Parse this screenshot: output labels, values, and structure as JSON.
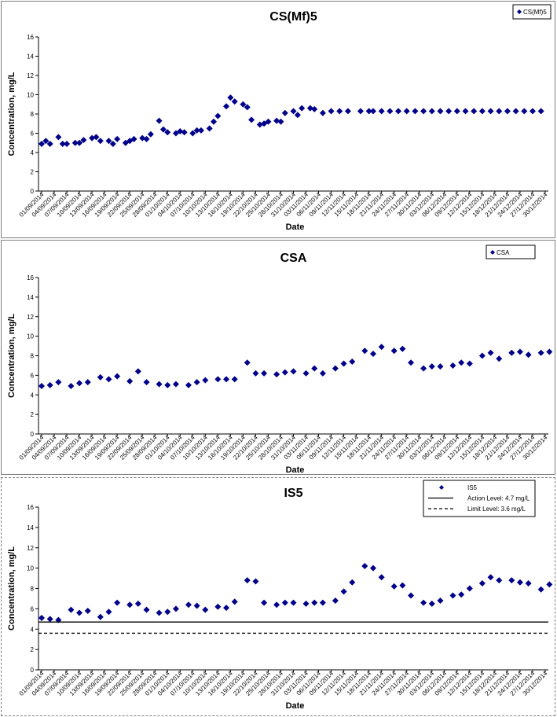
{
  "chart_data": [
    {
      "type": "scatter",
      "title": "CS(Mf)5",
      "xlabel": "Date",
      "ylabel": "Concentration, mg/L",
      "ylim": [
        0,
        16
      ],
      "yticks": [
        0,
        2,
        4,
        6,
        8,
        10,
        12,
        14,
        16
      ],
      "xlim": [
        "01/09/2014",
        "30/12/2014"
      ],
      "x_tick_labels": [
        "01/09/2014",
        "04/09/2014",
        "07/09/2014",
        "10/09/2014",
        "13/09/2014",
        "16/09/2014",
        "19/09/2014",
        "22/09/2014",
        "25/09/2014",
        "28/09/2014",
        "01/10/2014",
        "04/10/2014",
        "07/10/2014",
        "10/10/2014",
        "13/10/2014",
        "16/10/2014",
        "19/10/2014",
        "22/10/2014",
        "25/10/2014",
        "28/10/2014",
        "31/10/2014",
        "03/11/2014",
        "06/11/2014",
        "09/11/2014",
        "12/11/2014",
        "15/11/2014",
        "18/11/2014",
        "21/11/2014",
        "24/11/2014",
        "27/11/2014",
        "30/11/2014",
        "03/12/2014",
        "06/12/2014",
        "09/12/2014",
        "12/12/2014",
        "15/12/2014",
        "18/12/2014",
        "21/12/2014",
        "24/12/2014",
        "27/12/2014",
        "30/12/2014"
      ],
      "grid": false,
      "legend_position": "top-right",
      "series": [
        {
          "name": "CS(Mf)5",
          "color": "#00008b",
          "marker": "diamond",
          "x": [
            "01/09/2014",
            "02/09/2014",
            "03/09/2014",
            "05/09/2014",
            "06/09/2014",
            "07/09/2014",
            "09/09/2014",
            "10/09/2014",
            "11/09/2014",
            "13/09/2014",
            "14/09/2014",
            "15/09/2014",
            "17/09/2014",
            "18/09/2014",
            "19/09/2014",
            "21/09/2014",
            "22/09/2014",
            "23/09/2014",
            "25/09/2014",
            "26/09/2014",
            "27/09/2014",
            "29/09/2014",
            "30/09/2014",
            "01/10/2014",
            "03/10/2014",
            "04/10/2014",
            "05/10/2014",
            "07/10/2014",
            "08/10/2014",
            "09/10/2014",
            "11/10/2014",
            "12/10/2014",
            "13/10/2014",
            "15/10/2014",
            "16/10/2014",
            "17/10/2014",
            "19/10/2014",
            "20/10/2014",
            "21/10/2014",
            "23/10/2014",
            "24/10/2014",
            "25/10/2014",
            "27/10/2014",
            "28/10/2014",
            "29/10/2014",
            "31/10/2014",
            "01/11/2014",
            "02/11/2014",
            "04/11/2014",
            "05/11/2014",
            "07/11/2014",
            "09/11/2014",
            "11/11/2014",
            "13/11/2014",
            "16/11/2014",
            "18/11/2014",
            "19/11/2014",
            "21/11/2014",
            "23/11/2014",
            "25/11/2014",
            "27/11/2014",
            "29/11/2014",
            "01/12/2014",
            "03/12/2014",
            "05/12/2014",
            "07/12/2014",
            "09/12/2014",
            "11/12/2014",
            "13/12/2014",
            "15/12/2014",
            "17/12/2014",
            "19/12/2014",
            "21/12/2014",
            "23/12/2014",
            "25/12/2014",
            "27/12/2014",
            "29/12/2014"
          ],
          "y": [
            4.9,
            5.2,
            4.9,
            5.6,
            4.9,
            4.9,
            5.0,
            5.0,
            5.3,
            5.5,
            5.6,
            5.2,
            5.2,
            4.9,
            5.4,
            5.0,
            5.2,
            5.4,
            5.5,
            5.4,
            5.9,
            7.3,
            6.4,
            6.1,
            6.0,
            6.2,
            6.1,
            6.0,
            6.3,
            6.3,
            6.5,
            7.2,
            7.8,
            8.8,
            9.7,
            9.3,
            9.0,
            8.7,
            7.4,
            6.9,
            7.0,
            7.2,
            7.3,
            7.2,
            8.1,
            8.3,
            7.9,
            8.6,
            8.6,
            8.5,
            8.1,
            8.3,
            8.3,
            8.3,
            8.3,
            8.3,
            8.3,
            8.3,
            8.3,
            8.3,
            8.3,
            8.3,
            8.3,
            8.3,
            8.3,
            8.3,
            8.3,
            8.3,
            8.3,
            8.3,
            8.3,
            8.3,
            8.3,
            8.3,
            8.3,
            8.3,
            8.3
          ]
        }
      ]
    },
    {
      "type": "scatter",
      "title": "CSA",
      "xlabel": "Date",
      "ylabel": "Concentration, mg/L",
      "ylim": [
        0,
        16
      ],
      "yticks": [
        0,
        2,
        4,
        6,
        8,
        10,
        12,
        14,
        16
      ],
      "xlim": [
        "01/09/2014",
        "30/12/2014"
      ],
      "x_tick_labels": [
        "01/09/2014",
        "04/09/2014",
        "07/09/2014",
        "10/09/2014",
        "13/09/2014",
        "16/09/2014",
        "19/09/2014",
        "22/09/2014",
        "25/09/2014",
        "28/09/2014",
        "01/10/2014",
        "04/10/2014",
        "07/10/2014",
        "10/10/2014",
        "13/10/2014",
        "16/10/2014",
        "19/10/2014",
        "22/10/2014",
        "25/10/2014",
        "28/10/2014",
        "31/10/2014",
        "03/11/2014",
        "06/11/2014",
        "09/11/2014",
        "12/11/2014",
        "15/11/2014",
        "18/11/2014",
        "21/11/2014",
        "24/11/2014",
        "27/11/2014",
        "30/11/2014",
        "03/12/2014",
        "06/12/2014",
        "09/12/2014",
        "12/12/2014",
        "15/12/2014",
        "18/12/2014",
        "21/12/2014",
        "24/12/2014",
        "27/12/2014",
        "30/12/2014"
      ],
      "grid": false,
      "legend_position": "top-right",
      "series": [
        {
          "name": "CSA",
          "color": "#00008b",
          "marker": "diamond",
          "x": [
            "01/09/2014",
            "03/09/2014",
            "05/09/2014",
            "08/09/2014",
            "10/09/2014",
            "12/09/2014",
            "15/09/2014",
            "17/09/2014",
            "19/09/2014",
            "22/09/2014",
            "24/09/2014",
            "26/09/2014",
            "29/09/2014",
            "01/10/2014",
            "03/10/2014",
            "06/10/2014",
            "08/10/2014",
            "10/10/2014",
            "13/10/2014",
            "15/10/2014",
            "17/10/2014",
            "20/10/2014",
            "22/10/2014",
            "24/10/2014",
            "27/10/2014",
            "29/10/2014",
            "31/10/2014",
            "03/11/2014",
            "05/11/2014",
            "07/11/2014",
            "10/11/2014",
            "12/11/2014",
            "14/11/2014",
            "17/11/2014",
            "19/11/2014",
            "21/11/2014",
            "24/11/2014",
            "26/11/2014",
            "28/11/2014",
            "01/12/2014",
            "03/12/2014",
            "05/12/2014",
            "08/12/2014",
            "10/12/2014",
            "12/12/2014",
            "15/12/2014",
            "17/12/2014",
            "19/12/2014",
            "22/12/2014",
            "24/12/2014",
            "26/12/2014",
            "29/12/2014",
            "31/12/2014"
          ],
          "y": [
            4.9,
            5.0,
            5.3,
            4.9,
            5.2,
            5.3,
            5.8,
            5.6,
            5.9,
            5.4,
            6.4,
            5.3,
            5.1,
            5.0,
            5.1,
            5.0,
            5.3,
            5.5,
            5.6,
            5.6,
            5.6,
            7.3,
            6.2,
            6.2,
            6.1,
            6.3,
            6.4,
            6.2,
            6.7,
            6.2,
            6.7,
            7.2,
            7.4,
            8.5,
            8.2,
            8.9,
            8.5,
            8.7,
            7.3,
            6.7,
            6.9,
            6.9,
            7.0,
            7.3,
            7.2,
            8.0,
            8.3,
            7.7,
            8.3,
            8.4,
            8.1,
            8.3,
            8.4
          ]
        }
      ]
    },
    {
      "type": "scatter",
      "title": "IS5",
      "xlabel": "Date",
      "ylabel": "Concentration, mg/L",
      "ylim": [
        0,
        16
      ],
      "yticks": [
        0,
        2,
        4,
        6,
        8,
        10,
        12,
        14,
        16
      ],
      "xlim": [
        "01/09/2014",
        "30/12/2014"
      ],
      "x_tick_labels": [
        "01/09/2014",
        "04/09/2014",
        "07/09/2014",
        "10/09/2014",
        "13/09/2014",
        "16/09/2014",
        "19/09/2014",
        "22/09/2014",
        "25/09/2014",
        "28/09/2014",
        "01/10/2014",
        "04/10/2014",
        "07/10/2014",
        "10/10/2014",
        "13/10/2014",
        "16/10/2014",
        "19/10/2014",
        "22/10/2014",
        "25/10/2014",
        "28/10/2014",
        "31/10/2014",
        "03/11/2014",
        "06/11/2014",
        "09/11/2014",
        "12/11/2014",
        "15/11/2014",
        "18/11/2014",
        "21/11/2014",
        "24/11/2014",
        "27/11/2014",
        "30/11/2014",
        "03/12/2014",
        "06/12/2014",
        "09/12/2014",
        "12/12/2014",
        "15/12/2014",
        "18/12/2014",
        "21/12/2014",
        "24/12/2014",
        "27/12/2014",
        "30/12/2014"
      ],
      "grid": false,
      "legend_position": "top-right",
      "series": [
        {
          "name": "IS5",
          "color": "#00008b",
          "marker": "diamond",
          "x": [
            "01/09/2014",
            "03/09/2014",
            "05/09/2014",
            "08/09/2014",
            "10/09/2014",
            "12/09/2014",
            "15/09/2014",
            "17/09/2014",
            "19/09/2014",
            "22/09/2014",
            "24/09/2014",
            "26/09/2014",
            "29/09/2014",
            "01/10/2014",
            "03/10/2014",
            "06/10/2014",
            "08/10/2014",
            "10/10/2014",
            "13/10/2014",
            "15/10/2014",
            "17/10/2014",
            "20/10/2014",
            "22/10/2014",
            "24/10/2014",
            "27/10/2014",
            "29/10/2014",
            "31/10/2014",
            "03/11/2014",
            "05/11/2014",
            "07/11/2014",
            "10/11/2014",
            "12/11/2014",
            "14/11/2014",
            "17/11/2014",
            "19/11/2014",
            "21/11/2014",
            "24/11/2014",
            "26/11/2014",
            "28/11/2014",
            "01/12/2014",
            "03/12/2014",
            "05/12/2014",
            "08/12/2014",
            "10/12/2014",
            "12/12/2014",
            "15/12/2014",
            "17/12/2014",
            "19/12/2014",
            "22/12/2014",
            "24/12/2014",
            "26/12/2014",
            "29/12/2014",
            "31/12/2014"
          ],
          "y": [
            5.1,
            5.0,
            4.9,
            5.9,
            5.6,
            5.8,
            5.2,
            5.7,
            6.6,
            6.4,
            6.5,
            5.9,
            5.6,
            5.7,
            6.0,
            6.4,
            6.3,
            5.9,
            6.2,
            6.1,
            6.7,
            8.8,
            8.7,
            6.6,
            6.4,
            6.6,
            6.6,
            6.5,
            6.6,
            6.6,
            6.8,
            7.7,
            8.6,
            10.2,
            10.0,
            9.1,
            8.2,
            8.3,
            7.3,
            6.6,
            6.5,
            6.8,
            7.3,
            7.4,
            8.0,
            8.5,
            9.1,
            8.8,
            8.8,
            8.6,
            8.5,
            7.9,
            8.4
          ]
        },
        {
          "name": "Action Level: 4.7 mg/L",
          "type": "line",
          "style": "solid",
          "color": "#000000",
          "y": 4.7
        },
        {
          "name": "Limit Level: 3.6 mg/L",
          "type": "line",
          "style": "dashed",
          "color": "#000000",
          "y": 3.6
        }
      ]
    }
  ]
}
